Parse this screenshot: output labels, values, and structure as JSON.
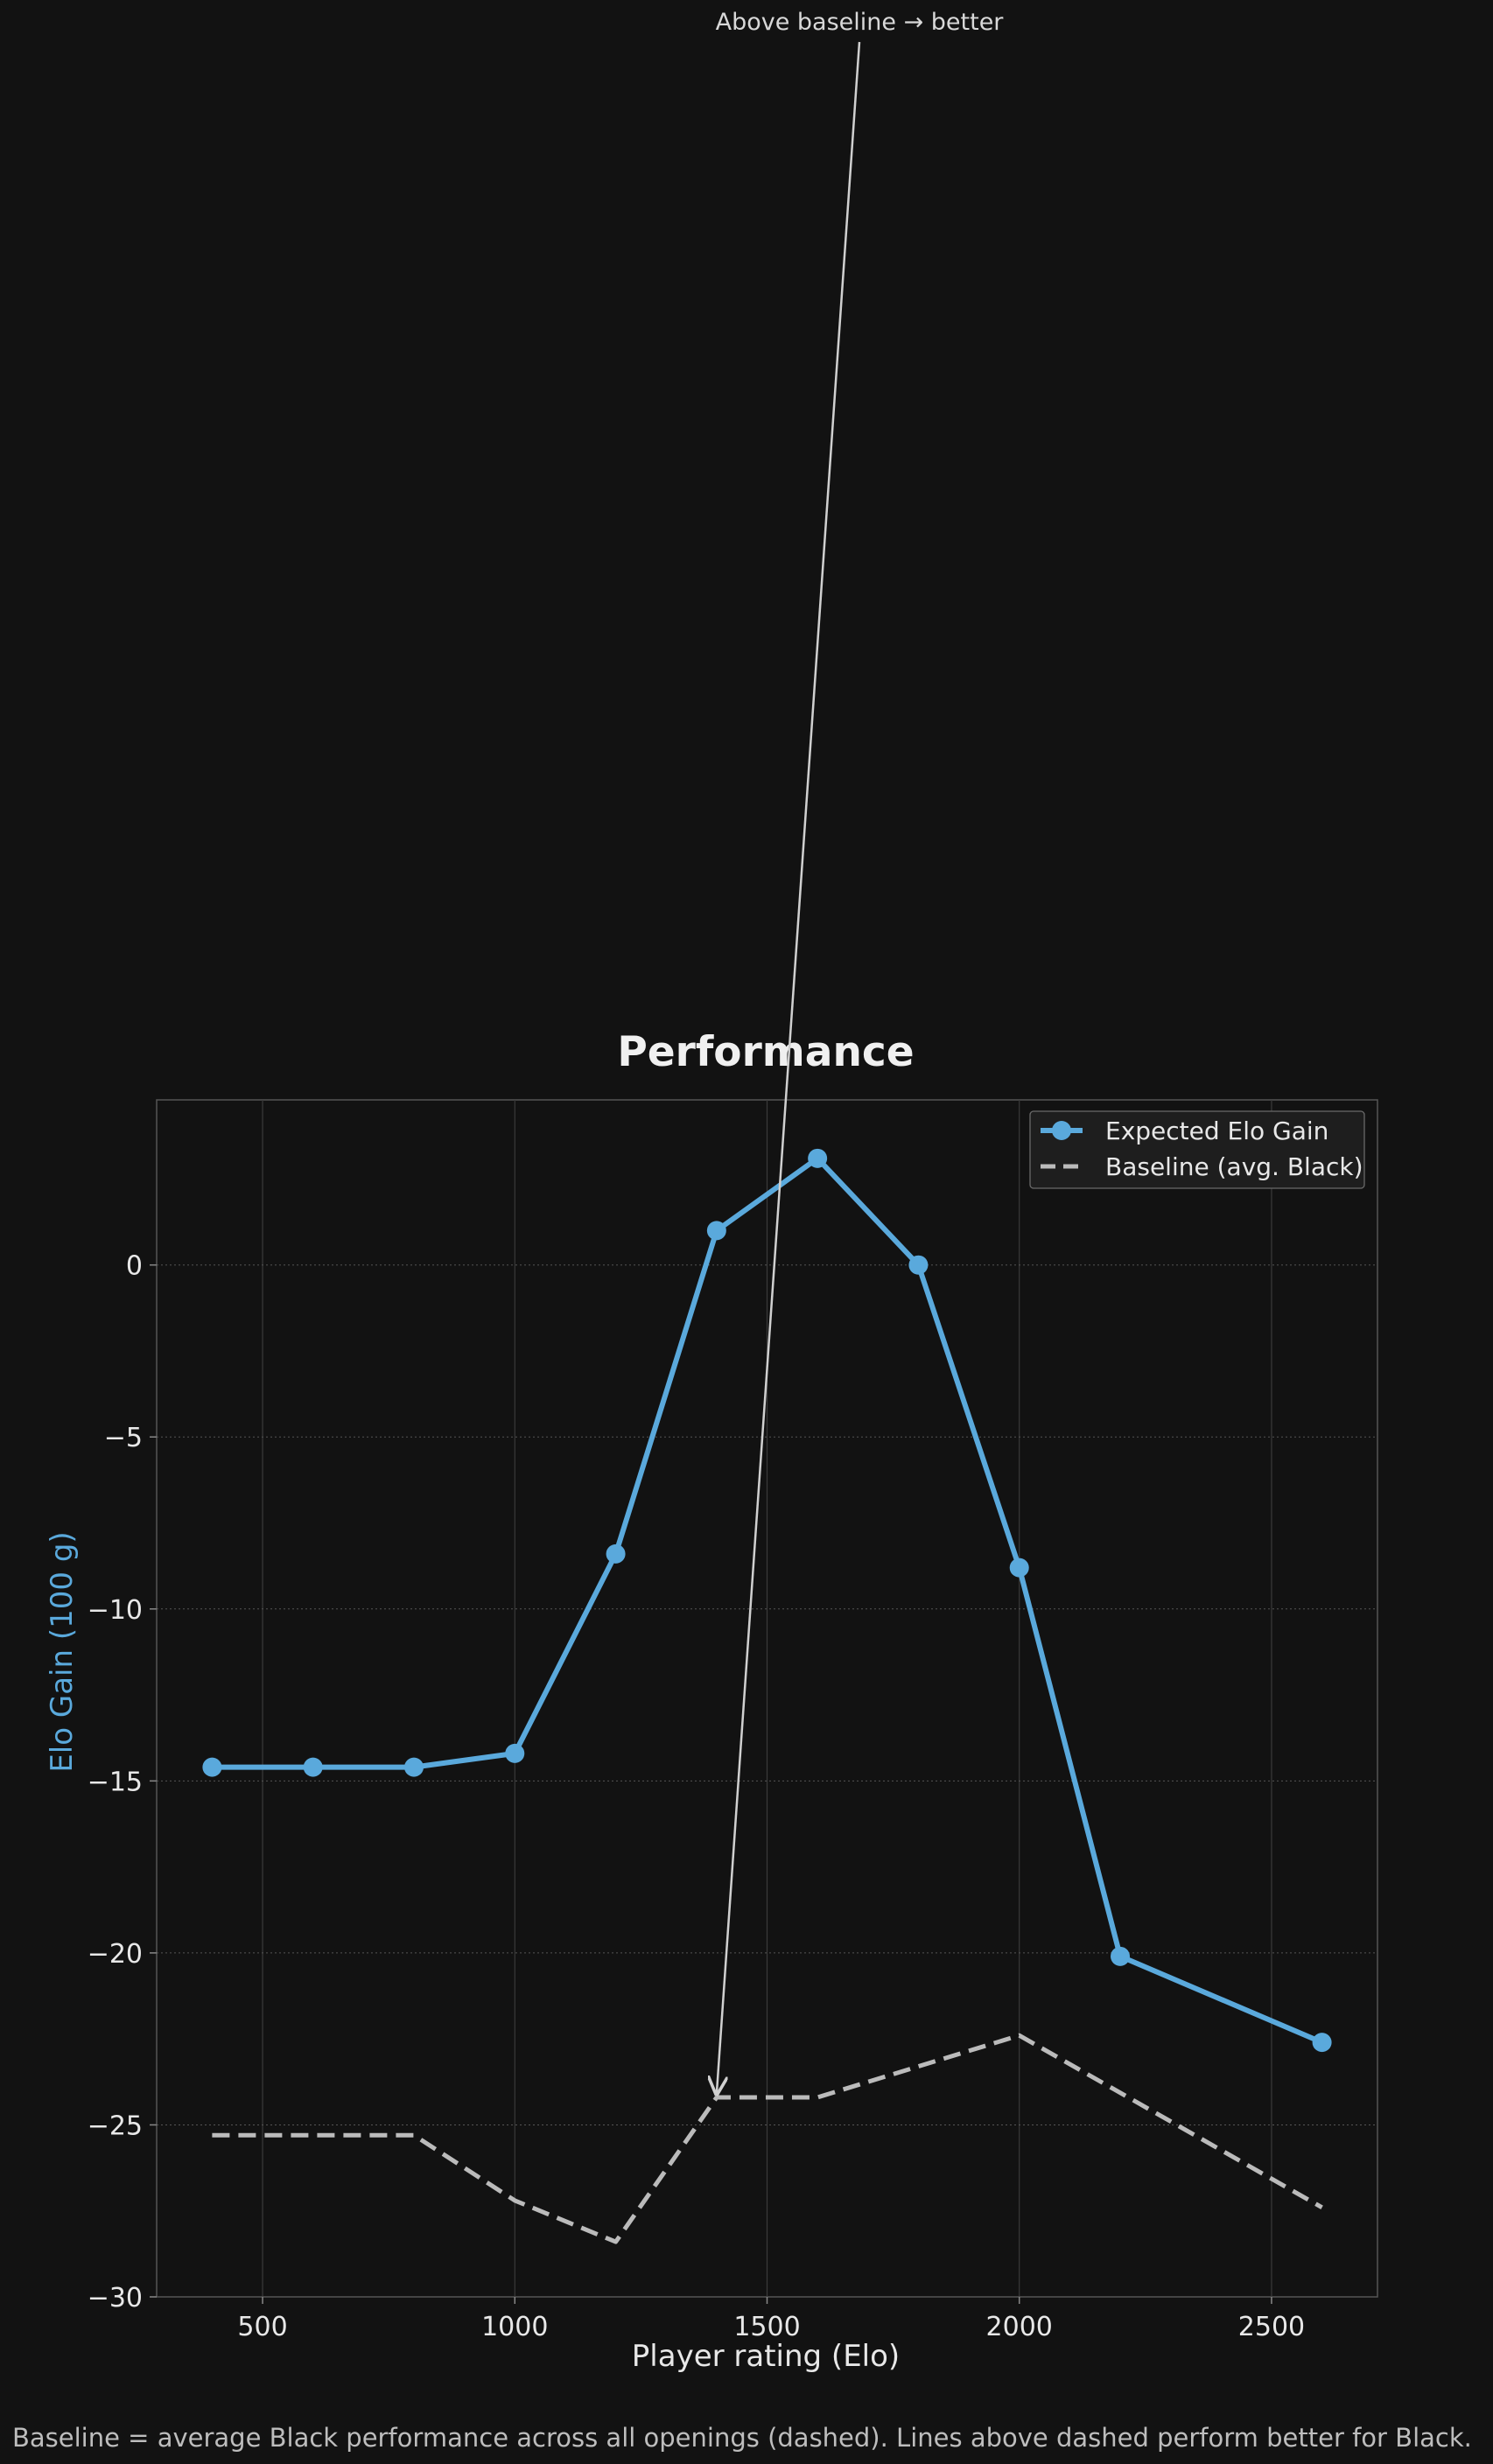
{
  "chart_data": {
    "type": "line",
    "title": "Performance",
    "xlabel": "Player rating (Elo)",
    "ylabel": "Elo Gain (100 g)",
    "xlim": [
      290,
      2710
    ],
    "ylim": [
      -30,
      4.8
    ],
    "xticks": [
      500,
      1000,
      1500,
      2000,
      2500
    ],
    "yticks": [
      -30,
      -25,
      -20,
      -15,
      -10,
      -5,
      0
    ],
    "grid": true,
    "legend_position": "top-right",
    "x": [
      400,
      600,
      800,
      1000,
      1200,
      1400,
      1600,
      1800,
      2000,
      2200,
      2600
    ],
    "series": [
      {
        "name": "Expected Elo Gain",
        "color": "#5aa9dc",
        "style": "solid-with-markers",
        "values": [
          -14.6,
          -14.6,
          -14.6,
          -14.2,
          -8.4,
          1.0,
          3.1,
          0.0,
          -8.8,
          -20.1,
          -22.6
        ]
      },
      {
        "name": "Baseline (avg. Black)",
        "color": "#bbbbbb",
        "style": "dashed",
        "values": [
          -25.3,
          -25.3,
          -25.3,
          -27.2,
          -28.4,
          -24.2,
          -24.2,
          null,
          -22.4,
          null,
          -27.4
        ]
      }
    ],
    "annotation": {
      "text": "Above baseline → better",
      "arrow_target": [
        1400,
        -24.2
      ]
    },
    "caption": "Baseline = average Black performance across all openings (dashed). Lines above dashed perform better for Black."
  }
}
